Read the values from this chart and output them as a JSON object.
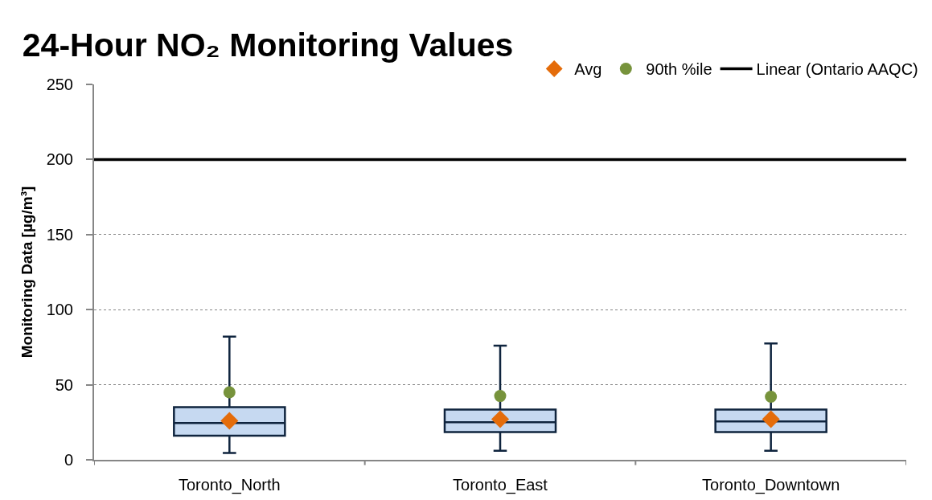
{
  "chart_data": {
    "type": "box",
    "title": "24-Hour NO₂ Monitoring Values",
    "ylabel": "Monitoring Data [µg/m³]",
    "categories": [
      "Toronto_North",
      "Toronto_East",
      "Toronto_Downtown"
    ],
    "series": [
      {
        "color": "#c6d9f1",
        "boxes": [
          {
            "low": 4.5,
            "q1": 16,
            "median": 24.5,
            "q3": 35,
            "high": 82
          },
          {
            "low": 6,
            "q1": 18.5,
            "median": 25,
            "q3": 33.5,
            "high": 76
          },
          {
            "low": 6,
            "q1": 18.5,
            "median": 25.5,
            "q3": 33.5,
            "high": 77.5
          }
        ]
      },
      {
        "name": "Avg",
        "type": "scatter",
        "marker": "diamond",
        "color": "#e46c0a",
        "x": [
          "Toronto_North",
          "Toronto_East",
          "Toronto_Downtown"
        ],
        "values": [
          26,
          27,
          27
        ]
      },
      {
        "name": "90th %ile",
        "type": "scatter",
        "marker": "circle",
        "color": "#77933c",
        "x": [
          "Toronto_North",
          "Toronto_East",
          "Toronto_Downtown"
        ],
        "values": [
          45,
          42.5,
          42
        ]
      }
    ],
    "ref_lines": [
      {
        "axis": "y",
        "value": 200,
        "label": "Linear (Ontario AAQC)",
        "color": "#000000"
      }
    ],
    "ylim": [
      0,
      250
    ],
    "yticks": [
      0,
      50,
      100,
      150,
      200,
      250
    ],
    "grid": "y",
    "legend": "top right"
  }
}
